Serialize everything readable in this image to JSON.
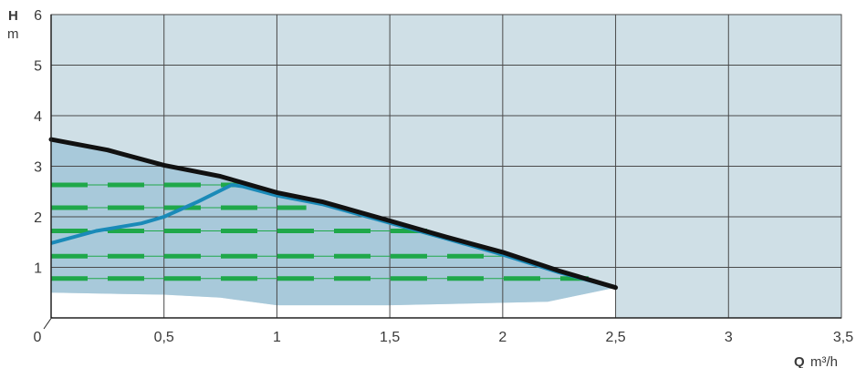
{
  "chart_data": {
    "type": "line",
    "x_label_symbol": "Q",
    "x_label_unit": "m³/h",
    "y_label_symbol": "H",
    "y_label_unit": "m",
    "xlim": [
      0,
      3.5
    ],
    "ylim": [
      0,
      6
    ],
    "x_ticks": [
      0,
      0.5,
      1,
      1.5,
      2,
      2.5,
      3,
      3.5
    ],
    "x_tick_labels": [
      "0",
      "0,5",
      "1",
      "1,5",
      "2",
      "2,5",
      "3",
      "3,5"
    ],
    "y_ticks": [
      1,
      2,
      3,
      4,
      5,
      6
    ],
    "y_tick_labels": [
      "1",
      "2",
      "3",
      "4",
      "5",
      "6"
    ],
    "grid": true,
    "colors": {
      "plot_background": "#cfdfe6",
      "grid": "#4a4a4a",
      "operating_area": "#a8c9da",
      "lower_band": "#ffffff",
      "max_curve": "#111111",
      "blue_curve": "#1a8ab8",
      "constant_pressure": "#1fa84a"
    },
    "series": [
      {
        "kind": "max-curve",
        "points": [
          [
            0,
            3.53
          ],
          [
            0.25,
            3.32
          ],
          [
            0.5,
            3.02
          ],
          [
            0.75,
            2.8
          ],
          [
            1.0,
            2.48
          ],
          [
            1.2,
            2.3
          ],
          [
            1.5,
            1.92
          ],
          [
            1.75,
            1.6
          ],
          [
            2.0,
            1.3
          ],
          [
            2.25,
            0.93
          ],
          [
            2.5,
            0.6
          ]
        ]
      },
      {
        "kind": "blue-curve",
        "points": [
          [
            0,
            1.48
          ],
          [
            0.2,
            1.72
          ],
          [
            0.4,
            1.87
          ],
          [
            0.5,
            2.0
          ],
          [
            0.65,
            2.3
          ],
          [
            0.8,
            2.63
          ],
          [
            0.85,
            2.6
          ],
          [
            1.0,
            2.42
          ],
          [
            1.2,
            2.25
          ],
          [
            1.5,
            1.88
          ],
          [
            1.75,
            1.57
          ],
          [
            2.0,
            1.25
          ],
          [
            2.25,
            0.9
          ],
          [
            2.5,
            0.6
          ]
        ]
      },
      {
        "kind": "lower-boundary",
        "points": [
          [
            0,
            0.5
          ],
          [
            0.5,
            0.46
          ],
          [
            0.75,
            0.4
          ],
          [
            1.0,
            0.25
          ],
          [
            1.5,
            0.25
          ],
          [
            2.0,
            0.3
          ],
          [
            2.2,
            0.32
          ],
          [
            2.5,
            0.6
          ]
        ]
      }
    ],
    "constant_pressure_levels": [
      {
        "h": 2.63,
        "q_end": 0.83
      },
      {
        "h": 2.18,
        "q_end": 1.13
      },
      {
        "h": 1.72,
        "q_end": 1.68
      },
      {
        "h": 1.22,
        "q_end": 2.0
      },
      {
        "h": 0.78,
        "q_end": 2.38
      }
    ]
  }
}
